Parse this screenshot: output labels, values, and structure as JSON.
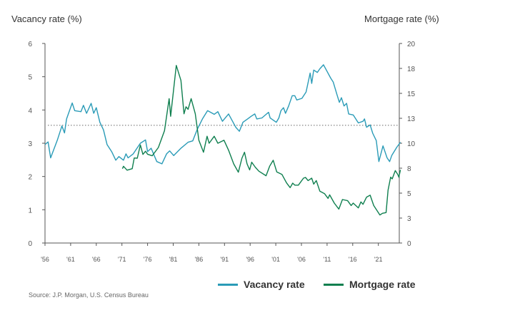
{
  "chart_data": {
    "type": "line",
    "left_axis_title": "Vacancy rate (%)",
    "right_axis_title": "Mortgage rate (%)",
    "left_ylim": [
      0,
      6
    ],
    "left_ticks": [
      0,
      1,
      2,
      3,
      4,
      5,
      6
    ],
    "right_ylim": [
      0,
      20
    ],
    "right_ticks": [
      0,
      2.5,
      5,
      7.5,
      10,
      12.5,
      15,
      17.5,
      20
    ],
    "right_tick_labels": [
      "0",
      "3",
      "5",
      "8",
      "10",
      "13",
      "15",
      "18",
      "20"
    ],
    "xlim": [
      1956,
      2025.3
    ],
    "x_ticks": [
      1956,
      1961,
      1966,
      1971,
      1976,
      1981,
      1986,
      1991,
      1996,
      2001,
      2006,
      2011,
      2016,
      2021
    ],
    "x_tick_labels": [
      "'56",
      "'61",
      "'66",
      "'71",
      "'76",
      "'81",
      "'86",
      "'91",
      "'96",
      "'01",
      "'06",
      "'11",
      "'16",
      "'21"
    ],
    "reference_line": {
      "axis": "left",
      "value": 3.54,
      "style": "dotted",
      "color": "#9a9a9a"
    },
    "grid": false,
    "legend_position": "bottom-right",
    "series": [
      {
        "name": "Vacancy rate",
        "axis": "left",
        "color": "#2a9bb7",
        "points": [
          [
            1956,
            2.96
          ],
          [
            1956.6,
            3.04
          ],
          [
            1957.1,
            2.56
          ],
          [
            1958.4,
            3.09
          ],
          [
            1959.3,
            3.52
          ],
          [
            1959.8,
            3.31
          ],
          [
            1960.2,
            3.73
          ],
          [
            1961.3,
            4.21
          ],
          [
            1961.8,
            3.98
          ],
          [
            1963,
            3.95
          ],
          [
            1963.5,
            4.14
          ],
          [
            1964.1,
            3.9
          ],
          [
            1965,
            4.2
          ],
          [
            1965.5,
            3.9
          ],
          [
            1966,
            4.07
          ],
          [
            1966.7,
            3.63
          ],
          [
            1967.4,
            3.4
          ],
          [
            1968.1,
            2.96
          ],
          [
            1969,
            2.75
          ],
          [
            1969.8,
            2.49
          ],
          [
            1970.4,
            2.6
          ],
          [
            1971.3,
            2.49
          ],
          [
            1971.8,
            2.68
          ],
          [
            1972.2,
            2.56
          ],
          [
            1973.2,
            2.68
          ],
          [
            1974.6,
            3.0
          ],
          [
            1975.6,
            3.1
          ],
          [
            1976,
            2.75
          ],
          [
            1976.7,
            2.85
          ],
          [
            1977.8,
            2.45
          ],
          [
            1978.8,
            2.38
          ],
          [
            1979.7,
            2.68
          ],
          [
            1980.3,
            2.77
          ],
          [
            1981.1,
            2.63
          ],
          [
            1982.5,
            2.85
          ],
          [
            1983.9,
            3.03
          ],
          [
            1984.8,
            3.07
          ],
          [
            1985.7,
            3.42
          ],
          [
            1986.7,
            3.73
          ],
          [
            1987.7,
            3.98
          ],
          [
            1989,
            3.87
          ],
          [
            1989.7,
            3.95
          ],
          [
            1990.6,
            3.66
          ],
          [
            1991.8,
            3.88
          ],
          [
            1993.2,
            3.48
          ],
          [
            1993.9,
            3.36
          ],
          [
            1994.6,
            3.63
          ],
          [
            1995.5,
            3.73
          ],
          [
            1996.2,
            3.81
          ],
          [
            1996.9,
            3.88
          ],
          [
            1997.3,
            3.73
          ],
          [
            1998.3,
            3.76
          ],
          [
            1999.2,
            3.88
          ],
          [
            1999.6,
            3.93
          ],
          [
            1999.9,
            3.76
          ],
          [
            2001.1,
            3.63
          ],
          [
            2001.6,
            3.76
          ],
          [
            2002,
            3.98
          ],
          [
            2002.5,
            4.07
          ],
          [
            2002.9,
            3.9
          ],
          [
            2003.5,
            4.12
          ],
          [
            2004.2,
            4.43
          ],
          [
            2004.7,
            4.43
          ],
          [
            2005.1,
            4.3
          ],
          [
            2006.1,
            4.35
          ],
          [
            2006.9,
            4.54
          ],
          [
            2007.7,
            5.11
          ],
          [
            2008,
            4.8
          ],
          [
            2008.4,
            5.2
          ],
          [
            2009.1,
            5.13
          ],
          [
            2009.6,
            5.24
          ],
          [
            2010.3,
            5.36
          ],
          [
            2011,
            5.16
          ],
          [
            2011.7,
            4.96
          ],
          [
            2012.2,
            4.84
          ],
          [
            2012.9,
            4.48
          ],
          [
            2013.4,
            4.23
          ],
          [
            2013.8,
            4.37
          ],
          [
            2014.3,
            4.12
          ],
          [
            2014.8,
            4.2
          ],
          [
            2015.2,
            3.88
          ],
          [
            2016.1,
            3.85
          ],
          [
            2017.1,
            3.61
          ],
          [
            2018,
            3.66
          ],
          [
            2018.3,
            3.73
          ],
          [
            2018.7,
            3.48
          ],
          [
            2019.4,
            3.55
          ],
          [
            2019.9,
            3.3
          ],
          [
            2020.6,
            3.08
          ],
          [
            2021.1,
            2.45
          ],
          [
            2021.9,
            2.92
          ],
          [
            2022.7,
            2.56
          ],
          [
            2023.2,
            2.45
          ],
          [
            2023.6,
            2.63
          ],
          [
            2024.6,
            2.88
          ],
          [
            2025.3,
            3.03
          ]
        ]
      },
      {
        "name": "Mortgage rate",
        "axis": "right",
        "color": "#0f7f4f",
        "points": [
          [
            1971.1,
            7.45
          ],
          [
            1971.3,
            7.69
          ],
          [
            1972,
            7.3
          ],
          [
            1973,
            7.45
          ],
          [
            1973.4,
            8.52
          ],
          [
            1974,
            8.5
          ],
          [
            1974.6,
            9.83
          ],
          [
            1975.1,
            8.88
          ],
          [
            1975.6,
            9.2
          ],
          [
            1976,
            8.9
          ],
          [
            1976.9,
            8.74
          ],
          [
            1978.1,
            9.57
          ],
          [
            1979.3,
            11.26
          ],
          [
            1980.2,
            14.47
          ],
          [
            1980.5,
            12.7
          ],
          [
            1981.6,
            17.8
          ],
          [
            1982.5,
            16.3
          ],
          [
            1983.1,
            12.95
          ],
          [
            1983.5,
            13.66
          ],
          [
            1983.9,
            13.4
          ],
          [
            1984.5,
            14.47
          ],
          [
            1985.3,
            12.95
          ],
          [
            1986,
            10.3
          ],
          [
            1986.9,
            9.1
          ],
          [
            1987.6,
            10.7
          ],
          [
            1988,
            10
          ],
          [
            1989,
            10.7
          ],
          [
            1989.7,
            10
          ],
          [
            1990.9,
            10.3
          ],
          [
            1991.8,
            9.3
          ],
          [
            1992.8,
            7.93
          ],
          [
            1993.7,
            7.1
          ],
          [
            1994.4,
            8.5
          ],
          [
            1994.9,
            9.1
          ],
          [
            1995.4,
            7.93
          ],
          [
            1995.9,
            7.33
          ],
          [
            1996.3,
            8.1
          ],
          [
            1997,
            7.6
          ],
          [
            1997.7,
            7.2
          ],
          [
            1999.1,
            6.74
          ],
          [
            1999.8,
            7.7
          ],
          [
            2000.5,
            8.29
          ],
          [
            2001.2,
            7.12
          ],
          [
            2002.2,
            6.88
          ],
          [
            2003.1,
            6.02
          ],
          [
            2003.8,
            5.55
          ],
          [
            2004.3,
            6.0
          ],
          [
            2004.7,
            5.8
          ],
          [
            2005.4,
            5.8
          ],
          [
            2006.4,
            6.5
          ],
          [
            2006.8,
            6.57
          ],
          [
            2007.3,
            6.26
          ],
          [
            2008,
            6.5
          ],
          [
            2008.4,
            5.9
          ],
          [
            2008.9,
            6.26
          ],
          [
            2009.6,
            5.19
          ],
          [
            2010.5,
            4.95
          ],
          [
            2011.2,
            4.47
          ],
          [
            2011.5,
            4.83
          ],
          [
            2012.4,
            4.0
          ],
          [
            2013.3,
            3.4
          ],
          [
            2014,
            4.36
          ],
          [
            2015,
            4.24
          ],
          [
            2015.7,
            3.76
          ],
          [
            2016.1,
            4.0
          ],
          [
            2017.1,
            3.52
          ],
          [
            2017.6,
            4.12
          ],
          [
            2018,
            3.88
          ],
          [
            2018.7,
            4.6
          ],
          [
            2019.4,
            4.79
          ],
          [
            2020.1,
            3.76
          ],
          [
            2021.3,
            2.81
          ],
          [
            2021.8,
            2.98
          ],
          [
            2022.5,
            3.05
          ],
          [
            2022.9,
            5.31
          ],
          [
            2023.4,
            6.6
          ],
          [
            2023.7,
            6.43
          ],
          [
            2024.3,
            7.26
          ],
          [
            2024.8,
            6.86
          ],
          [
            2025,
            6.6
          ],
          [
            2025.3,
            7.33
          ]
        ]
      }
    ]
  },
  "legend": {
    "vacancy_label": "Vacancy rate",
    "mortgage_label": "Mortgage rate"
  },
  "source": "Source: J.P. Morgan, U.S. Census Bureau"
}
